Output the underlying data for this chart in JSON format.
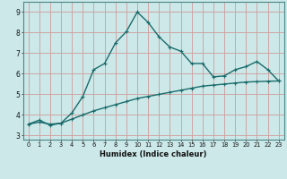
{
  "xlabel": "Humidex (Indice chaleur)",
  "ylabel": "",
  "background_color": "#cce8e8",
  "grid_color_major": "#b0d0d0",
  "grid_color_minor": "#e0b0b0",
  "line_color": "#1a6b6b",
  "x_humidex": [
    0,
    1,
    2,
    3,
    4,
    5,
    6,
    7,
    8,
    9,
    10,
    11,
    12,
    13,
    14,
    15,
    16,
    17,
    18,
    19,
    20,
    21,
    22,
    23
  ],
  "y_curve": [
    3.55,
    3.75,
    3.5,
    3.6,
    4.1,
    4.9,
    6.2,
    6.5,
    7.5,
    8.05,
    9.0,
    8.5,
    7.8,
    7.3,
    7.1,
    6.5,
    6.5,
    5.85,
    5.9,
    6.2,
    6.35,
    6.6,
    6.2,
    5.65
  ],
  "y_linear": [
    3.55,
    3.65,
    3.55,
    3.6,
    3.8,
    4.0,
    4.2,
    4.35,
    4.5,
    4.65,
    4.8,
    4.9,
    5.0,
    5.1,
    5.2,
    5.3,
    5.4,
    5.45,
    5.5,
    5.55,
    5.6,
    5.62,
    5.64,
    5.65
  ],
  "xlim": [
    -0.5,
    23.5
  ],
  "ylim": [
    2.8,
    9.5
  ],
  "yticks": [
    3,
    4,
    5,
    6,
    7,
    8,
    9
  ],
  "xticks": [
    0,
    1,
    2,
    3,
    4,
    5,
    6,
    7,
    8,
    9,
    10,
    11,
    12,
    13,
    14,
    15,
    16,
    17,
    18,
    19,
    20,
    21,
    22,
    23
  ]
}
